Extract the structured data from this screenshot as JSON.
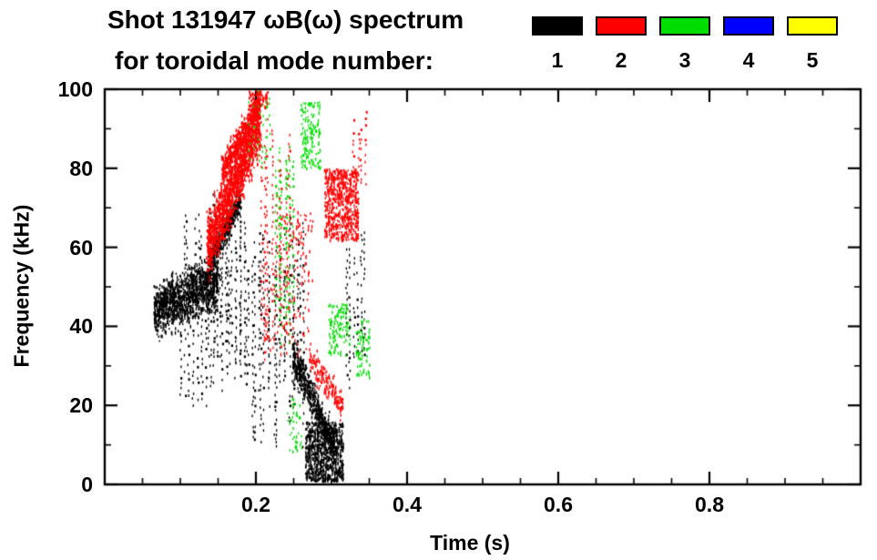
{
  "title": {
    "line1": "Shot 131947 ωB(ω) spectrum",
    "line2": "for toroidal mode number:"
  },
  "legend": {
    "entries": [
      {
        "label": "1",
        "color": "#000000"
      },
      {
        "label": "2",
        "color": "#ff0000"
      },
      {
        "label": "3",
        "color": "#00dd00"
      },
      {
        "label": "4",
        "color": "#0000ff"
      },
      {
        "label": "5",
        "color": "#ffff00"
      }
    ],
    "position": "top-right"
  },
  "chart_data": {
    "type": "scatter",
    "title": "Shot 131947 ωB(ω) spectrum",
    "subtitle": "for toroidal mode number: 1 2 3 4 5",
    "xlabel": "Time (s)",
    "ylabel": "Frequency (kHz)",
    "xlim": [
      0,
      1
    ],
    "ylim": [
      0,
      100
    ],
    "x_major_ticks": [
      0.2,
      0.4,
      0.6,
      0.8
    ],
    "x_tick_labels": [
      "0.2",
      "0.4",
      "0.6",
      "0.8"
    ],
    "x_minor_step": 0.05,
    "y_major_ticks": [
      0,
      20,
      40,
      60,
      80,
      100
    ],
    "y_tick_labels": [
      "0",
      "20",
      "40",
      "60",
      "80",
      "100"
    ],
    "y_minor_step": 10,
    "grid": false,
    "legend_position": "top-right",
    "series": [
      {
        "name": "n=1",
        "color": "#000000",
        "clusters": [
          {
            "style": "chirp",
            "t": [
              0.065,
              0.15
            ],
            "f_start": 44,
            "f_end": 52,
            "spread": 7,
            "n": 1300
          },
          {
            "style": "streaks",
            "t": [
              0.098,
              0.135
            ],
            "f": [
              18,
              46
            ],
            "streaks": 7
          },
          {
            "style": "streaks",
            "t": [
              0.1,
              0.132
            ],
            "f": [
              48,
              72
            ],
            "streaks": 5
          },
          {
            "style": "streaks",
            "t": [
              0.135,
              0.185
            ],
            "f": [
              20,
              74
            ],
            "streaks": 16
          },
          {
            "style": "chirp",
            "t": [
              0.138,
              0.178
            ],
            "f_start": 57,
            "f_end": 72,
            "spread": 4,
            "n": 420
          },
          {
            "style": "streaks",
            "t": [
              0.185,
              0.265
            ],
            "f": [
              8,
              68
            ],
            "streaks": 20
          },
          {
            "style": "chirp",
            "t": [
              0.248,
              0.305
            ],
            "f_start": 33,
            "f_end": 9,
            "spread": 5,
            "n": 600
          },
          {
            "style": "blob",
            "t": [
              0.265,
              0.315
            ],
            "f": [
              1,
              16
            ],
            "n": 800
          },
          {
            "style": "streaks",
            "t": [
              0.315,
              0.345
            ],
            "f": [
              22,
              66
            ],
            "streaks": 6
          }
        ]
      },
      {
        "name": "n=2",
        "color": "#ff0000",
        "clusters": [
          {
            "style": "chirp",
            "t": [
              0.135,
              0.205
            ],
            "f_start": 60,
            "f_end": 92,
            "spread": 8,
            "n": 1500
          },
          {
            "style": "chirp",
            "t": [
              0.155,
              0.205
            ],
            "f_start": 80,
            "f_end": 97,
            "spread": 4,
            "n": 550
          },
          {
            "style": "streaks",
            "t": [
              0.205,
              0.245
            ],
            "f": [
              30,
              95
            ],
            "streaks": 9
          },
          {
            "style": "blob",
            "t": [
              0.235,
              0.275
            ],
            "f": [
              50,
              70
            ],
            "n": 90
          },
          {
            "style": "chirp",
            "t": [
              0.27,
              0.315
            ],
            "f_start": 32,
            "f_end": 20,
            "spread": 4,
            "n": 170
          },
          {
            "style": "blob",
            "t": [
              0.29,
              0.335
            ],
            "f": [
              62,
              80
            ],
            "n": 650
          },
          {
            "style": "streaks",
            "t": [
              0.328,
              0.346
            ],
            "f": [
              74,
              95
            ],
            "streaks": 4
          },
          {
            "style": "blob",
            "t": [
              0.19,
              0.215
            ],
            "f": [
              95,
              100
            ],
            "n": 90
          },
          {
            "style": "blob",
            "t": [
              0.21,
              0.27
            ],
            "f": [
              33,
              50
            ],
            "n": 70
          }
        ]
      },
      {
        "name": "n=3",
        "color": "#00dd00",
        "clusters": [
          {
            "style": "streaks",
            "t": [
              0.19,
              0.218
            ],
            "f": [
              80,
              100
            ],
            "streaks": 6
          },
          {
            "style": "streaks",
            "t": [
              0.222,
              0.252
            ],
            "f": [
              34,
              92
            ],
            "streaks": 7
          },
          {
            "style": "blob",
            "t": [
              0.258,
              0.285
            ],
            "f": [
              80,
              97
            ],
            "n": 150
          },
          {
            "style": "blob",
            "t": [
              0.295,
              0.325
            ],
            "f": [
              33,
              46
            ],
            "n": 120
          },
          {
            "style": "blob",
            "t": [
              0.332,
              0.35
            ],
            "f": [
              27,
              42
            ],
            "n": 80
          },
          {
            "style": "blob",
            "t": [
              0.24,
              0.26
            ],
            "f": [
              8,
              22
            ],
            "n": 40
          }
        ]
      },
      {
        "name": "n=4",
        "color": "#0000ff",
        "clusters": []
      },
      {
        "name": "n=5",
        "color": "#ffff00",
        "clusters": []
      }
    ]
  }
}
